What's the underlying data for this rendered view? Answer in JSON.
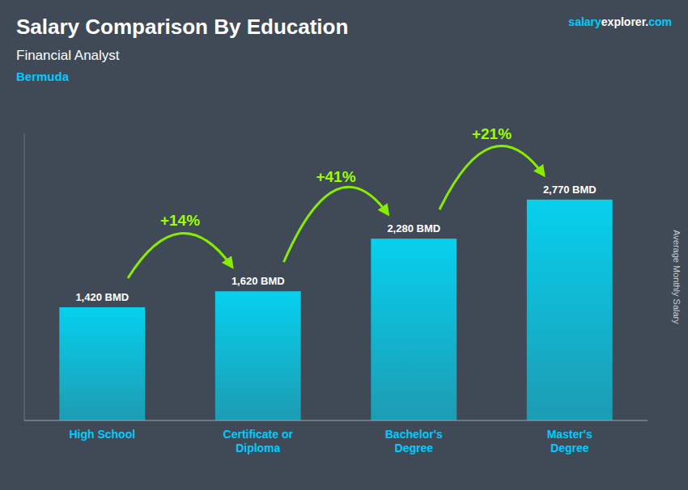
{
  "chart_data": {
    "type": "bar",
    "title": "Salary Comparison By Education",
    "subtitle": "Financial Analyst",
    "location": "Bermuda",
    "brand": [
      "salary",
      "explorer",
      ".",
      "com"
    ],
    "ylabel": "Average Monthly Salary",
    "categories": [
      "High School",
      "Certificate or\nDiploma",
      "Bachelor's\nDegree",
      "Master's\nDegree"
    ],
    "values": [
      1420,
      1620,
      2280,
      2770
    ],
    "value_labels": [
      "1,420 BMD",
      "1,620 BMD",
      "2,280 BMD",
      "2,770 BMD"
    ],
    "data_labels": true,
    "annotations": [
      "+14%",
      "+41%",
      "+21%"
    ],
    "color": "#00dfff",
    "ylim": [
      0,
      3600
    ],
    "tick_labels": "x",
    "grid": false
  }
}
